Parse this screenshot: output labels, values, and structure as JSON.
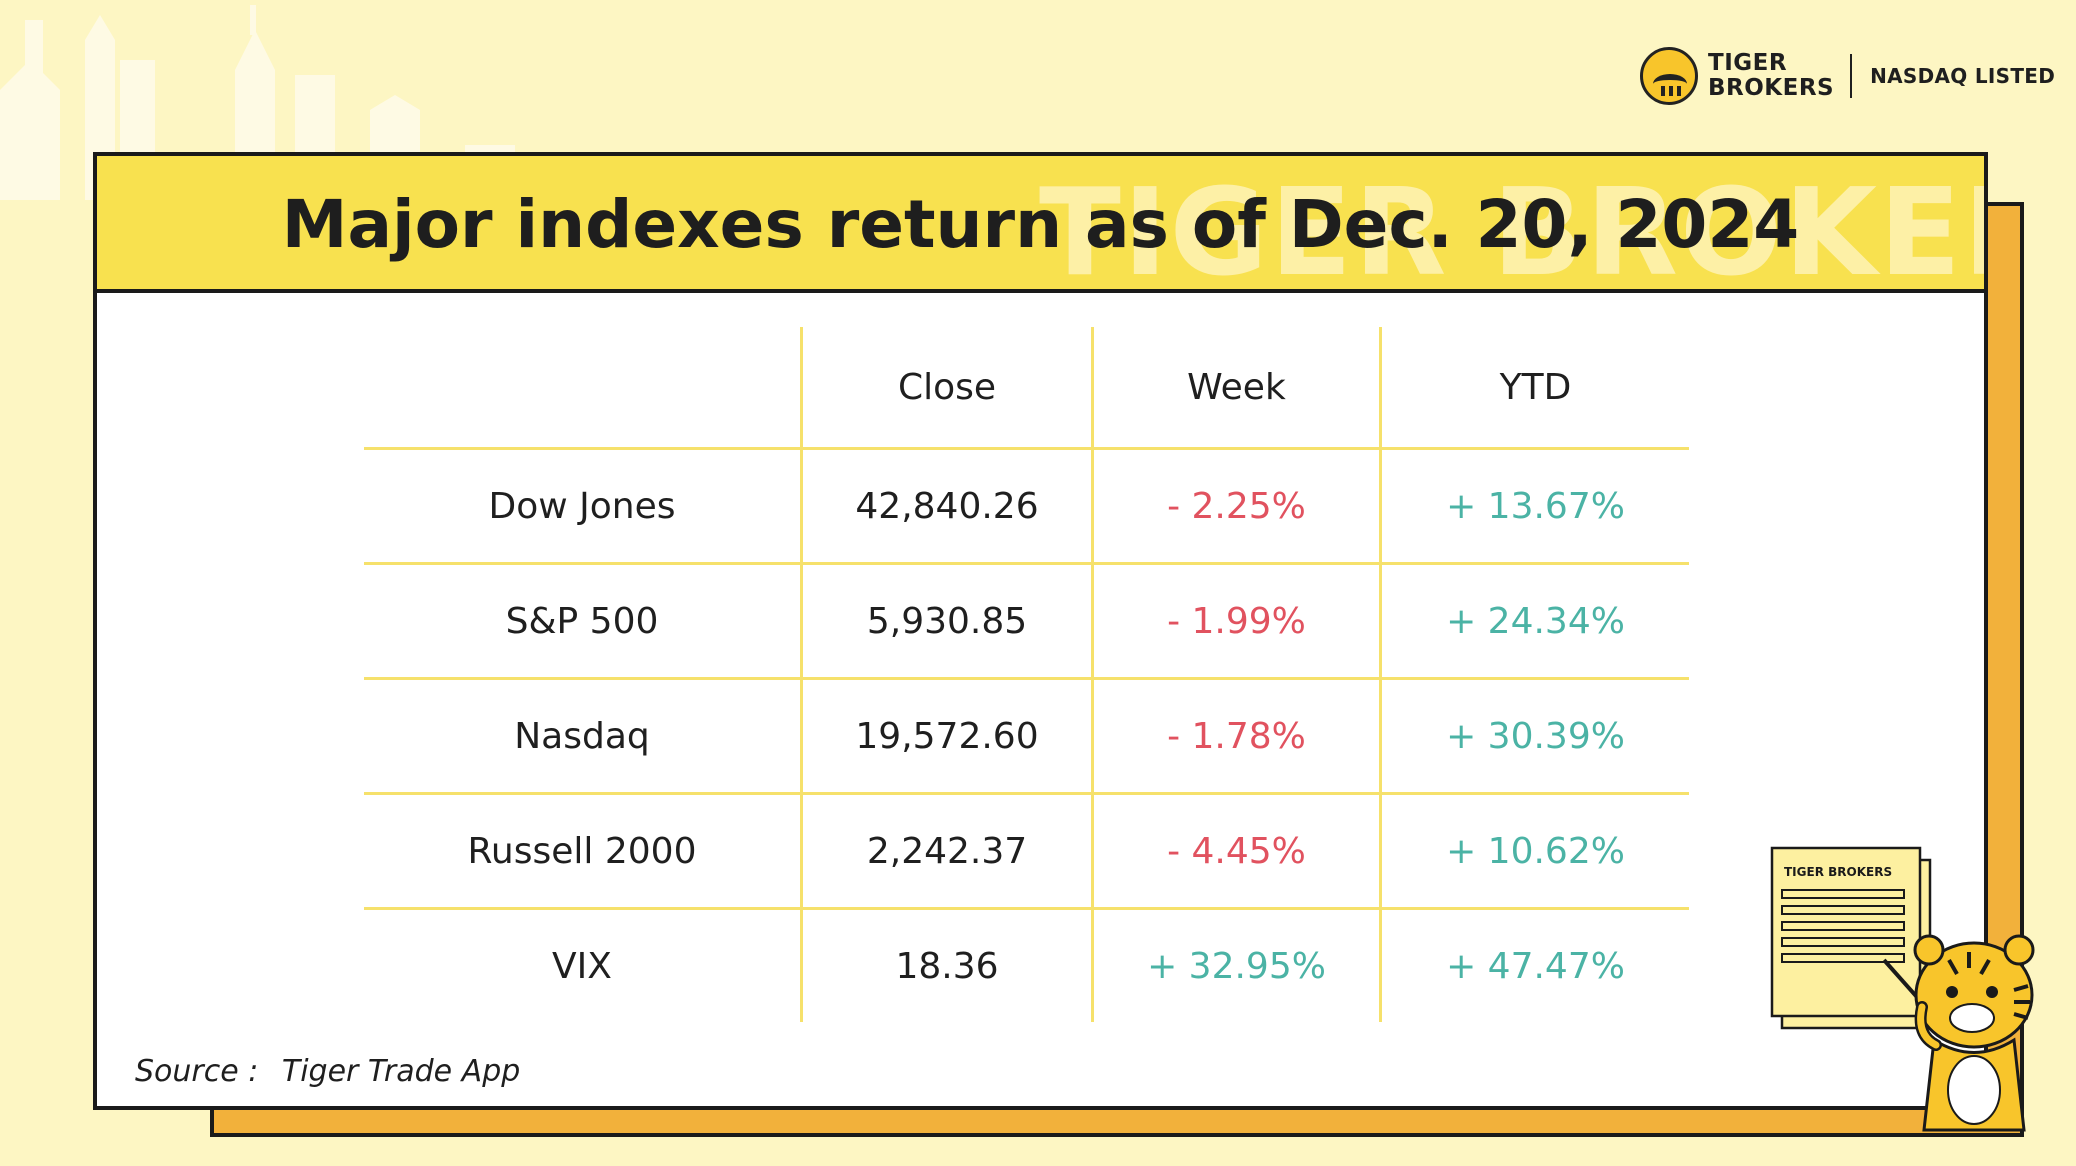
{
  "header": {
    "brand_line1": "TIGER",
    "brand_line2": "BROKERS",
    "listed": "NASDAQ LISTED"
  },
  "card": {
    "title": "Major indexes return as of Dec. 20, 2024",
    "watermark": "TIGER BROKERS"
  },
  "table": {
    "columns": [
      "",
      "Close",
      "Week",
      "YTD"
    ],
    "rows": [
      {
        "name": "Dow Jones",
        "close": "42,840.26",
        "week": "- 2.25%",
        "ytd": "+ 13.67%"
      },
      {
        "name": "S&P 500",
        "close": "5,930.85",
        "week": "- 1.99%",
        "ytd": "+ 24.34%"
      },
      {
        "name": "Nasdaq",
        "close": "19,572.60",
        "week": "- 1.78%",
        "ytd": "+ 30.39%"
      },
      {
        "name": "Russell 2000",
        "close": "2,242.37",
        "week": "- 4.45%",
        "ytd": "+ 10.62%"
      },
      {
        "name": "VIX",
        "close": "18.36",
        "week": "+ 32.95%",
        "ytd": "+ 47.47%"
      }
    ]
  },
  "source": {
    "label": "Source :",
    "value": "Tiger Trade App"
  },
  "mascot": {
    "board_label": "TIGER BROKERS"
  },
  "colors": {
    "negative": "#e1525f",
    "positive": "#4bb3a5",
    "header_yellow": "#f8e14f",
    "shadow_orange": "#f2b13b",
    "background": "#fdf6c3"
  }
}
